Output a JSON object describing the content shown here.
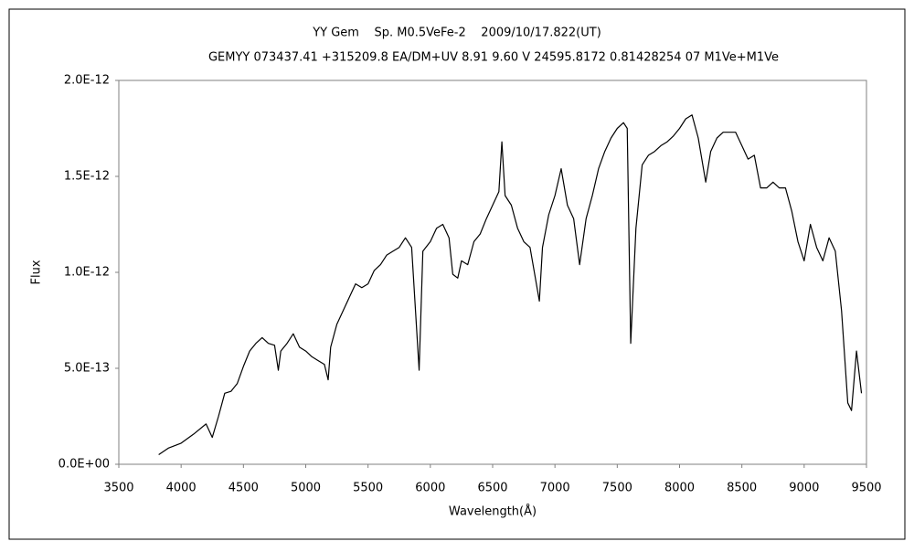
{
  "chart_data": {
    "type": "line",
    "title": "YY Gem    Sp. M0.5VeFe-2    2009/10/17.822(UT)",
    "subtitle": "GEMYY 073437.41 +315209.8 EA/DM+UV 8.91 9.60 V 24595.8172 0.81428254 07 M1Ve+M1Ve",
    "x_label": "Wavelength(Å)",
    "y_label": "Flux",
    "color": "#000000",
    "xlim": [
      3500,
      9500
    ],
    "xticks": [
      3500,
      4000,
      4500,
      5000,
      5500,
      6000,
      6500,
      7000,
      7500,
      8000,
      8500,
      9000,
      9500
    ],
    "ylim": [
      0,
      2e-12
    ],
    "yticks": [
      {
        "value": 0,
        "label": "0.0E+00"
      },
      {
        "value": 5e-13,
        "label": "5.0E-13"
      },
      {
        "value": 1e-12,
        "label": "1.0E-12"
      },
      {
        "value": 1.5e-12,
        "label": "1.5E-12"
      },
      {
        "value": 2e-12,
        "label": "2.0E-12"
      }
    ],
    "x": [
      3820,
      3900,
      4000,
      4100,
      4200,
      4250,
      4300,
      4350,
      4400,
      4450,
      4500,
      4550,
      4600,
      4650,
      4700,
      4750,
      4780,
      4800,
      4850,
      4900,
      4950,
      5000,
      5050,
      5100,
      5150,
      5180,
      5200,
      5250,
      5300,
      5350,
      5400,
      5450,
      5500,
      5550,
      5600,
      5650,
      5700,
      5750,
      5800,
      5850,
      5910,
      5940,
      6000,
      6050,
      6100,
      6150,
      6180,
      6220,
      6250,
      6300,
      6350,
      6400,
      6450,
      6500,
      6550,
      6574,
      6600,
      6650,
      6700,
      6750,
      6800,
      6875,
      6900,
      6950,
      7000,
      7050,
      7100,
      7150,
      7198,
      7250,
      7300,
      7350,
      7400,
      7450,
      7500,
      7550,
      7580,
      7608,
      7650,
      7700,
      7750,
      7800,
      7850,
      7900,
      7950,
      8000,
      8050,
      8100,
      8150,
      8210,
      8250,
      8300,
      8350,
      8400,
      8450,
      8500,
      8550,
      8600,
      8650,
      8700,
      8750,
      8800,
      8850,
      8900,
      8950,
      9000,
      9050,
      9100,
      9150,
      9200,
      9250,
      9300,
      9350,
      9380,
      9420,
      9460
    ],
    "values": [
      5e-14,
      8.5e-14,
      1.1e-13,
      1.57e-13,
      2.1e-13,
      1.4e-13,
      2.5e-13,
      3.7e-13,
      3.8e-13,
      4.2e-13,
      5.1e-13,
      5.9e-13,
      6.3e-13,
      6.6e-13,
      6.3e-13,
      6.2e-13,
      4.9e-13,
      5.9e-13,
      6.3e-13,
      6.8e-13,
      6.1e-13,
      5.9e-13,
      5.6e-13,
      5.4e-13,
      5.2e-13,
      4.4e-13,
      6.1e-13,
      7.3e-13,
      8e-13,
      8.7e-13,
      9.4e-13,
      9.2e-13,
      9.4e-13,
      1.01e-12,
      1.04e-12,
      1.09e-12,
      1.11e-12,
      1.13e-12,
      1.18e-12,
      1.13e-12,
      4.9e-13,
      1.11e-12,
      1.16e-12,
      1.23e-12,
      1.25e-12,
      1.18e-12,
      9.9e-13,
      9.7e-13,
      1.06e-12,
      1.04e-12,
      1.16e-12,
      1.2e-12,
      1.28e-12,
      1.35e-12,
      1.42e-12,
      1.68e-12,
      1.4e-12,
      1.35e-12,
      1.23e-12,
      1.16e-12,
      1.13e-12,
      8.5e-13,
      1.13e-12,
      1.3e-12,
      1.4e-12,
      1.54e-12,
      1.35e-12,
      1.28e-12,
      1.04e-12,
      1.28e-12,
      1.4e-12,
      1.54e-12,
      1.63e-12,
      1.7e-12,
      1.75e-12,
      1.78e-12,
      1.75e-12,
      6.3e-13,
      1.23e-12,
      1.56e-12,
      1.61e-12,
      1.63e-12,
      1.66e-12,
      1.68e-12,
      1.71e-12,
      1.75e-12,
      1.8e-12,
      1.82e-12,
      1.7e-12,
      1.47e-12,
      1.63e-12,
      1.7e-12,
      1.73e-12,
      1.73e-12,
      1.73e-12,
      1.66e-12,
      1.59e-12,
      1.61e-12,
      1.44e-12,
      1.44e-12,
      1.47e-12,
      1.44e-12,
      1.44e-12,
      1.32e-12,
      1.16e-12,
      1.06e-12,
      1.25e-12,
      1.13e-12,
      1.06e-12,
      1.18e-12,
      1.11e-12,
      8e-13,
      3.2e-13,
      2.8e-13,
      5.9e-13,
      3.7e-13
    ]
  }
}
